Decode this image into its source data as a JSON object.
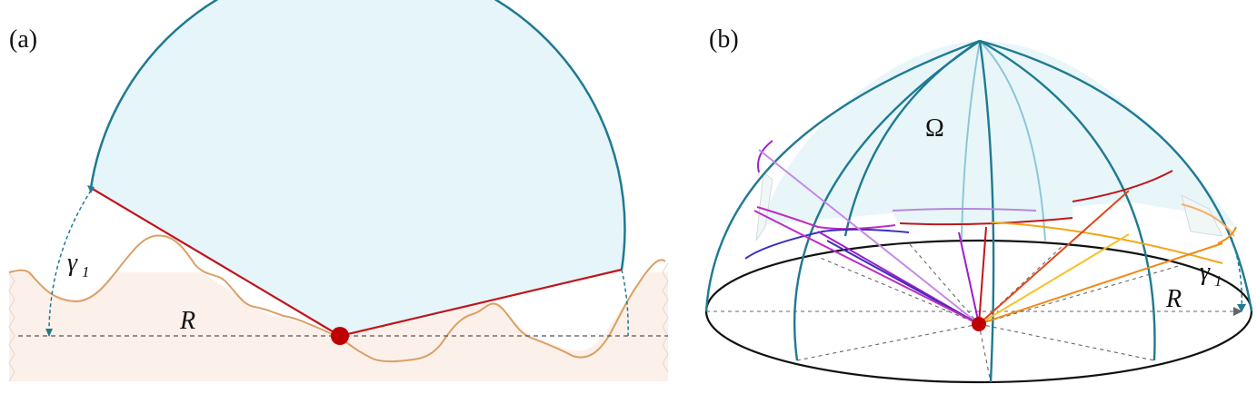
{
  "panels": {
    "a": {
      "label": "(a)",
      "gamma_symbol": "γ",
      "gamma_subscript": "1",
      "radius_label": "R"
    },
    "b": {
      "label": "(b)",
      "omega_label": "Ω",
      "gamma_symbol": "γ",
      "gamma_subscript": "1",
      "radius_label": "R"
    }
  },
  "colors": {
    "dome_stroke": "#1f7a91",
    "sky_fill": "#e6f5fa",
    "terrain_stroke": "#d9a066",
    "terrain_fill": "#fbf0ea",
    "horizon_line": "#c0151b",
    "observer": "#c00000",
    "dashed": "#555555",
    "ray_colors": [
      "#3a2fbf",
      "#9b1fc7",
      "#b05ad8",
      "#c4235a",
      "#e0461b",
      "#f2a516",
      "#f5b52a",
      "#f08a17"
    ]
  }
}
